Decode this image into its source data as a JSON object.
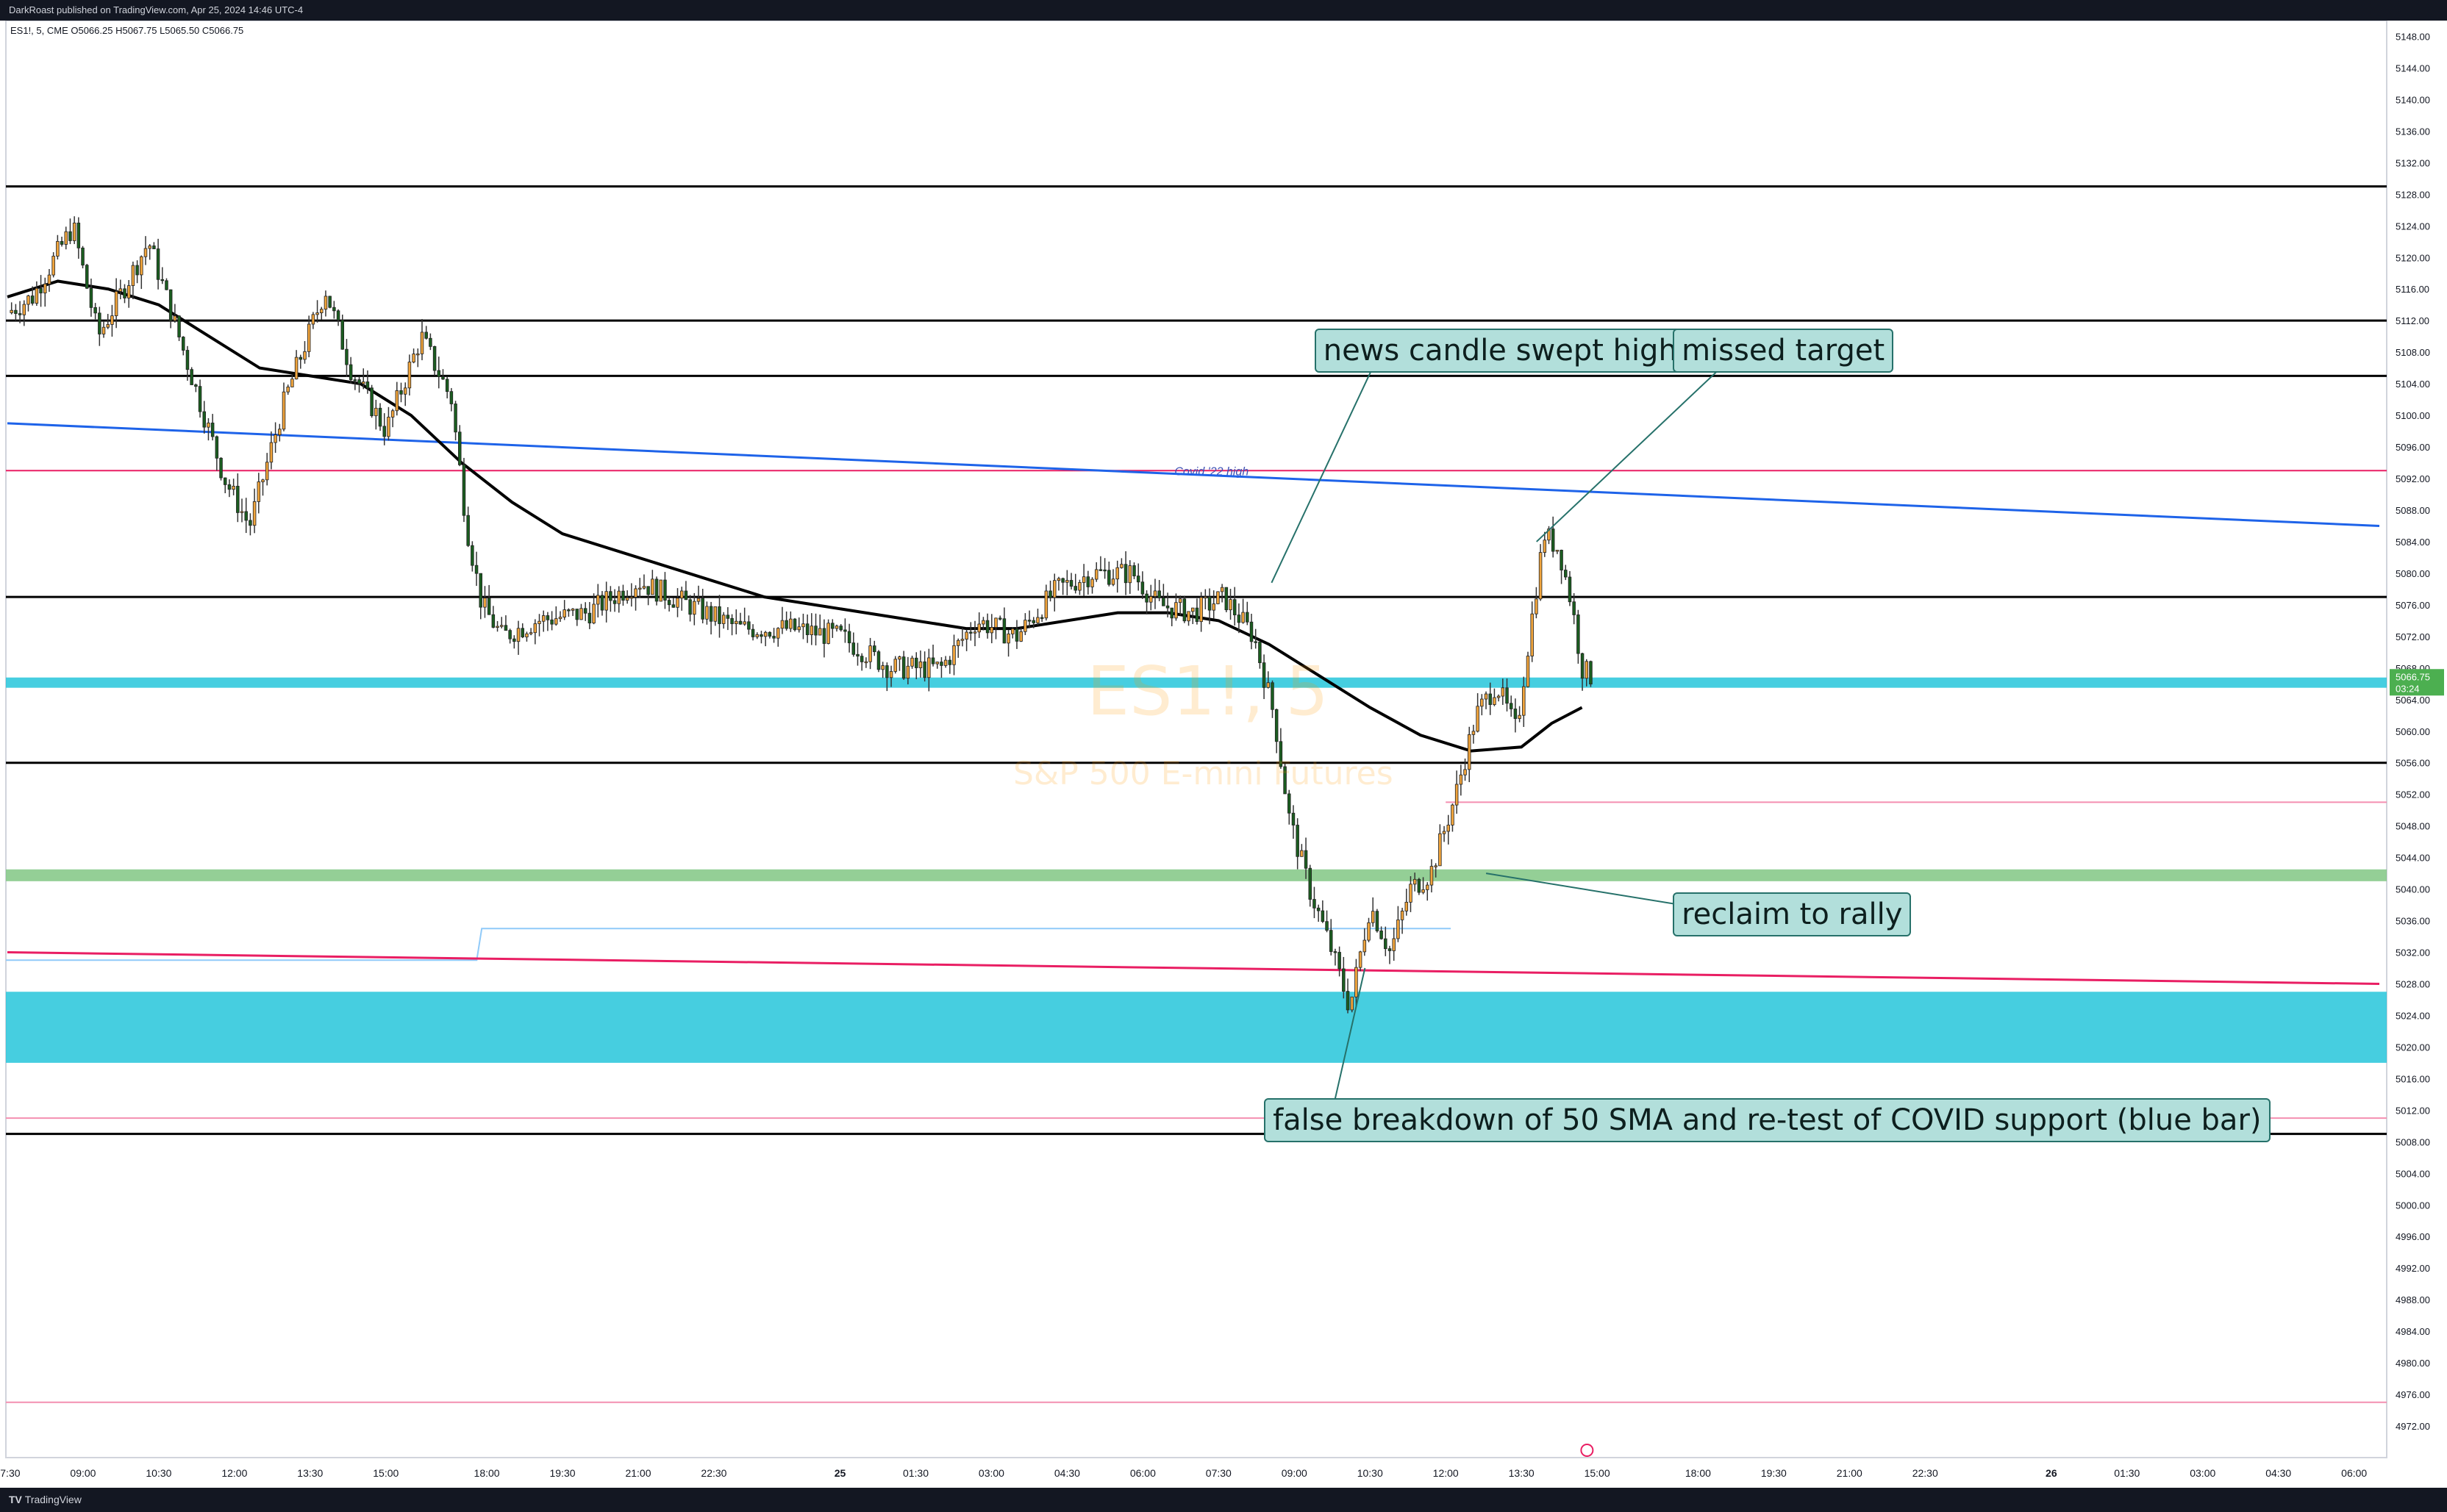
{
  "header": {
    "published": "DarkRoast published on TradingView.com, Apr 25, 2024 14:46 UTC-4"
  },
  "legend": {
    "ohlc": "ES1!, 5, CME  O5066.25  H5067.75  L5065.50  C5066.75"
  },
  "footer": {
    "brand": "TradingView"
  },
  "watermark": {
    "symbol": "ES1!, 5",
    "name": "S&P 500 E-mini Futures"
  },
  "price_badge": {
    "price": "5066.75",
    "countdown": "03:24",
    "color": "#4caf50"
  },
  "colors": {
    "up": "#f0a43c",
    "down": "#1b5e20",
    "sma": "#000000",
    "trend": "#1e63e9",
    "pink": "#e91e63",
    "cyan_zone": "#26c6da",
    "green_zone": "#81c784",
    "annotation": "#b2dfdb"
  },
  "chart_data": {
    "type": "candlestick",
    "title": "",
    "xlabel": "",
    "ylabel": "",
    "ylim": [
      4968,
      5150
    ],
    "y_ticks": [
      "5148.00",
      "5144.00",
      "5140.00",
      "5136.00",
      "5132.00",
      "5128.00",
      "5124.00",
      "5120.00",
      "5116.00",
      "5112.00",
      "5108.00",
      "5104.00",
      "5100.00",
      "5096.00",
      "5092.00",
      "5088.00",
      "5084.00",
      "5080.00",
      "5076.00",
      "5072.00",
      "5068.00",
      "5064.00",
      "5060.00",
      "5056.00",
      "5052.00",
      "5048.00",
      "5044.00",
      "5040.00",
      "5036.00",
      "5032.00",
      "5028.00",
      "5024.00",
      "5020.00",
      "5016.00",
      "5012.00",
      "5008.00",
      "5004.00",
      "5000.00",
      "4996.00",
      "4992.00",
      "4988.00",
      "4984.00",
      "4980.00",
      "4976.00",
      "4972.00"
    ],
    "x_ticks": [
      {
        "label": "07:30",
        "t": 0
      },
      {
        "label": "09:00",
        "t": 1.5
      },
      {
        "label": "10:30",
        "t": 3
      },
      {
        "label": "12:00",
        "t": 4.5
      },
      {
        "label": "13:30",
        "t": 6
      },
      {
        "label": "15:00",
        "t": 7.5
      },
      {
        "label": "18:00",
        "t": 9.5
      },
      {
        "label": "19:30",
        "t": 11
      },
      {
        "label": "21:00",
        "t": 12.5
      },
      {
        "label": "22:30",
        "t": 14
      },
      {
        "label": "25",
        "t": 16.5
      },
      {
        "label": "01:30",
        "t": 18
      },
      {
        "label": "03:00",
        "t": 19.5
      },
      {
        "label": "04:30",
        "t": 21
      },
      {
        "label": "06:00",
        "t": 22.5
      },
      {
        "label": "07:30",
        "t": 24
      },
      {
        "label": "09:00",
        "t": 25.5
      },
      {
        "label": "10:30",
        "t": 27
      },
      {
        "label": "12:00",
        "t": 28.5
      },
      {
        "label": "13:30",
        "t": 30
      },
      {
        "label": "15:00",
        "t": 31.5
      },
      {
        "label": "18:00",
        "t": 33.5
      },
      {
        "label": "19:30",
        "t": 35
      },
      {
        "label": "21:00",
        "t": 36.5
      },
      {
        "label": "22:30",
        "t": 38
      },
      {
        "label": "26",
        "t": 40.5
      },
      {
        "label": "01:30",
        "t": 42
      },
      {
        "label": "03:00",
        "t": 43.5
      },
      {
        "label": "04:30",
        "t": 45
      },
      {
        "label": "06:00",
        "t": 46.5
      }
    ],
    "price_path": [
      [
        0,
        5113
      ],
      [
        0.5,
        5115
      ],
      [
        1.3,
        5124
      ],
      [
        1.8,
        5110
      ],
      [
        2.8,
        5122
      ],
      [
        3.7,
        5104
      ],
      [
        4.3,
        5092
      ],
      [
        4.8,
        5086
      ],
      [
        5.5,
        5102
      ],
      [
        6.3,
        5116
      ],
      [
        6.8,
        5106
      ],
      [
        7.5,
        5098
      ],
      [
        8.2,
        5110
      ],
      [
        8.8,
        5102
      ],
      [
        9.1,
        5086
      ],
      [
        9.4,
        5076
      ],
      [
        9.8,
        5072
      ],
      [
        10.5,
        5074
      ],
      [
        11.5,
        5075
      ],
      [
        12.5,
        5079
      ],
      [
        13.5,
        5076
      ],
      [
        14.5,
        5073
      ],
      [
        15.5,
        5073
      ],
      [
        16.5,
        5072
      ],
      [
        17.5,
        5068
      ],
      [
        18.5,
        5068
      ],
      [
        19.2,
        5074
      ],
      [
        20,
        5072
      ],
      [
        20.8,
        5078
      ],
      [
        21.5,
        5080
      ],
      [
        22.3,
        5080
      ],
      [
        22.8,
        5076
      ],
      [
        23.5,
        5075
      ],
      [
        24.1,
        5077
      ],
      [
        24.7,
        5072
      ],
      [
        25.1,
        5062
      ],
      [
        25.4,
        5049
      ],
      [
        25.8,
        5040
      ],
      [
        26.2,
        5033
      ],
      [
        26.6,
        5025
      ],
      [
        27,
        5038
      ],
      [
        27.4,
        5032
      ],
      [
        27.8,
        5040
      ],
      [
        28.2,
        5042
      ],
      [
        28.7,
        5052
      ],
      [
        29.1,
        5062
      ],
      [
        29.5,
        5066
      ],
      [
        29.9,
        5060
      ],
      [
        30.2,
        5074
      ],
      [
        30.45,
        5085
      ],
      [
        30.75,
        5083
      ],
      [
        31.0,
        5076
      ],
      [
        31.2,
        5068
      ],
      [
        31.4,
        5066.75
      ]
    ],
    "sma": {
      "name": "50 SMA",
      "points": [
        [
          0,
          5115
        ],
        [
          1,
          5117
        ],
        [
          2,
          5116
        ],
        [
          3,
          5114
        ],
        [
          4,
          5110
        ],
        [
          5,
          5106
        ],
        [
          6,
          5105
        ],
        [
          7,
          5104
        ],
        [
          8,
          5100
        ],
        [
          9,
          5094
        ],
        [
          10,
          5089
        ],
        [
          11,
          5085
        ],
        [
          12,
          5083
        ],
        [
          13,
          5081
        ],
        [
          14,
          5079
        ],
        [
          15,
          5077
        ],
        [
          16,
          5076
        ],
        [
          17,
          5075
        ],
        [
          18,
          5074
        ],
        [
          19,
          5073
        ],
        [
          20,
          5073
        ],
        [
          21,
          5074
        ],
        [
          22,
          5075
        ],
        [
          23,
          5075
        ],
        [
          24,
          5074
        ],
        [
          25,
          5071
        ],
        [
          26,
          5067
        ],
        [
          27,
          5063
        ],
        [
          28,
          5059.5
        ],
        [
          29,
          5057.5
        ],
        [
          30,
          5058
        ],
        [
          30.6,
          5061
        ],
        [
          31.2,
          5063
        ]
      ]
    },
    "horizontal_levels": [
      5129,
      5112,
      5105,
      5077,
      5056,
      5009
    ],
    "thin_levels": [
      {
        "y": 5093,
        "color": "#e91e63"
      },
      {
        "y": 5051,
        "color": "#f48fb1"
      },
      {
        "y": 5011,
        "color": "#f48fb1"
      },
      {
        "y": 4975,
        "color": "#f48fb1"
      }
    ],
    "zones": [
      {
        "from": 5065.5,
        "to": 5066.8,
        "color": "#26c6da"
      },
      {
        "from": 5041,
        "to": 5042.5,
        "color": "#81c784"
      },
      {
        "from": 5018,
        "to": 5027,
        "color": "#26c6da"
      }
    ],
    "trendlines": [
      {
        "name": "trend-blue",
        "color": "#1e63e9",
        "from": [
          0,
          5099
        ],
        "to": [
          47,
          5086
        ]
      },
      {
        "name": "trend-pink",
        "color": "#e91e63",
        "from": [
          0,
          5032
        ],
        "to": [
          47,
          5028
        ]
      }
    ],
    "level_label": {
      "text": "Covid '22 high",
      "t": 24,
      "y": 5093
    },
    "annotations": [
      {
        "text": "news candle swept highs",
        "box": [
          25.9,
          5108.2
        ],
        "tip": [
          25.05,
          5078.8
        ]
      },
      {
        "text": "missed target",
        "box": [
          33.0,
          5108.2
        ],
        "tip": [
          30.3,
          5084
        ]
      },
      {
        "text": "reclaim to rally",
        "box": [
          33.0,
          5036.8
        ],
        "tip": [
          29.3,
          5042
        ]
      },
      {
        "text": "false breakdown of 50 SMA and re-test of COVID support (blue bar)",
        "box": [
          24.9,
          5010.7
        ],
        "tip": [
          26.9,
          5030
        ]
      }
    ]
  }
}
